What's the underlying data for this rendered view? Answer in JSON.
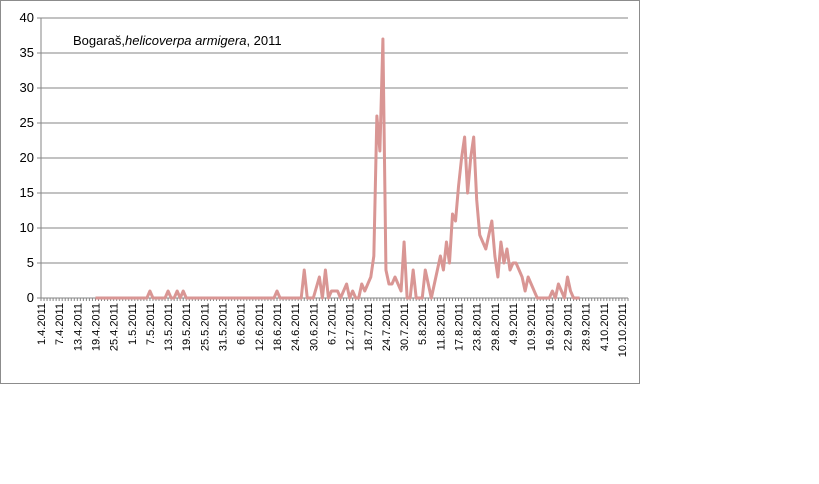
{
  "chart_data": {
    "type": "line",
    "title_parts": [
      "Bogaraš,",
      "helicoverpa armigera",
      ", 2011"
    ],
    "ylim": [
      0,
      40
    ],
    "y_ticks": [
      0,
      5,
      10,
      15,
      20,
      25,
      30,
      35,
      40
    ],
    "x_tick_labels": [
      "1.4.2011",
      "7.4.2011",
      "13.4.2011",
      "19.4.2011",
      "25.4.2011",
      "1.5.2011",
      "7.5.2011",
      "13.5.2011",
      "19.5.2011",
      "25.5.2011",
      "31.5.2011",
      "6.6.2011",
      "12.6.2011",
      "18.6.2011",
      "24.6.2011",
      "30.6.2011",
      "6.7.2011",
      "12.7.2011",
      "18.7.2011",
      "24.7.2011",
      "30.7.2011",
      "5.8.2011",
      "11.8.2011",
      "17.8.2011",
      "23.8.2011",
      "29.8.2011",
      "4.9.2011",
      "10.9.2011",
      "16.9.2011",
      "22.9.2011",
      "28.9.2011",
      "4.10.2011",
      "10.10.2011"
    ],
    "grid": "horizontal",
    "legend": "none",
    "series": [
      {
        "color": "#d99694",
        "points": [
          [
            "19.4.2011",
            0
          ],
          [
            "6.5.2011",
            0
          ],
          [
            "7.5.2011",
            1
          ],
          [
            "8.5.2011",
            0
          ],
          [
            "12.5.2011",
            0
          ],
          [
            "13.5.2011",
            1
          ],
          [
            "14.5.2011",
            0
          ],
          [
            "15.5.2011",
            0
          ],
          [
            "16.5.2011",
            1
          ],
          [
            "17.5.2011",
            0
          ],
          [
            "18.5.2011",
            1
          ],
          [
            "19.5.2011",
            0
          ],
          [
            "17.6.2011",
            0
          ],
          [
            "18.6.2011",
            1
          ],
          [
            "19.6.2011",
            0
          ],
          [
            "26.6.2011",
            0
          ],
          [
            "27.6.2011",
            4
          ],
          [
            "28.6.2011",
            0
          ],
          [
            "30.6.2011",
            0
          ],
          [
            "2.7.2011",
            3
          ],
          [
            "3.7.2011",
            0
          ],
          [
            "4.7.2011",
            4
          ],
          [
            "5.7.2011",
            0
          ],
          [
            "6.7.2011",
            1
          ],
          [
            "8.7.2011",
            1
          ],
          [
            "9.7.2011",
            0
          ],
          [
            "11.7.2011",
            2
          ],
          [
            "12.7.2011",
            0
          ],
          [
            "13.7.2011",
            1
          ],
          [
            "14.7.2011",
            0
          ],
          [
            "15.7.2011",
            0
          ],
          [
            "16.7.2011",
            2
          ],
          [
            "17.7.2011",
            1
          ],
          [
            "18.7.2011",
            2
          ],
          [
            "19.7.2011",
            3
          ],
          [
            "20.7.2011",
            6
          ],
          [
            "21.7.2011",
            26
          ],
          [
            "22.7.2011",
            21
          ],
          [
            "23.7.2011",
            37
          ],
          [
            "24.7.2011",
            4
          ],
          [
            "25.7.2011",
            2
          ],
          [
            "26.7.2011",
            2
          ],
          [
            "27.7.2011",
            3
          ],
          [
            "28.7.2011",
            2
          ],
          [
            "29.7.2011",
            1
          ],
          [
            "30.7.2011",
            8
          ],
          [
            "31.7.2011",
            0
          ],
          [
            "1.8.2011",
            0
          ],
          [
            "2.8.2011",
            4
          ],
          [
            "3.8.2011",
            0
          ],
          [
            "4.8.2011",
            0
          ],
          [
            "5.8.2011",
            0
          ],
          [
            "6.8.2011",
            4
          ],
          [
            "7.8.2011",
            2
          ],
          [
            "8.8.2011",
            0
          ],
          [
            "9.8.2011",
            2
          ],
          [
            "10.8.2011",
            4
          ],
          [
            "11.8.2011",
            6
          ],
          [
            "12.8.2011",
            4
          ],
          [
            "13.8.2011",
            8
          ],
          [
            "14.8.2011",
            5
          ],
          [
            "15.8.2011",
            12
          ],
          [
            "16.8.2011",
            11
          ],
          [
            "17.8.2011",
            16
          ],
          [
            "18.8.2011",
            20
          ],
          [
            "19.8.2011",
            23
          ],
          [
            "20.8.2011",
            15
          ],
          [
            "21.8.2011",
            20
          ],
          [
            "22.8.2011",
            23
          ],
          [
            "23.8.2011",
            14
          ],
          [
            "24.8.2011",
            9
          ],
          [
            "25.8.2011",
            8
          ],
          [
            "26.8.2011",
            7
          ],
          [
            "27.8.2011",
            9
          ],
          [
            "28.8.2011",
            11
          ],
          [
            "29.8.2011",
            6
          ],
          [
            "30.8.2011",
            3
          ],
          [
            "31.8.2011",
            8
          ],
          [
            "1.9.2011",
            5
          ],
          [
            "2.9.2011",
            7
          ],
          [
            "3.9.2011",
            4
          ],
          [
            "4.9.2011",
            5
          ],
          [
            "5.9.2011",
            5
          ],
          [
            "6.9.2011",
            4
          ],
          [
            "7.9.2011",
            3
          ],
          [
            "8.9.2011",
            1
          ],
          [
            "9.9.2011",
            3
          ],
          [
            "10.9.2011",
            2
          ],
          [
            "11.9.2011",
            1
          ],
          [
            "12.9.2011",
            0
          ],
          [
            "13.9.2011",
            0
          ],
          [
            "14.9.2011",
            0
          ],
          [
            "15.9.2011",
            0
          ],
          [
            "16.9.2011",
            0
          ],
          [
            "17.9.2011",
            1
          ],
          [
            "18.9.2011",
            0
          ],
          [
            "19.9.2011",
            2
          ],
          [
            "20.9.2011",
            1
          ],
          [
            "21.9.2011",
            0
          ],
          [
            "22.9.2011",
            3
          ],
          [
            "23.9.2011",
            1
          ],
          [
            "24.9.2011",
            0
          ],
          [
            "25.9.2011",
            0
          ],
          [
            "26.9.2011",
            0
          ]
        ]
      }
    ]
  }
}
